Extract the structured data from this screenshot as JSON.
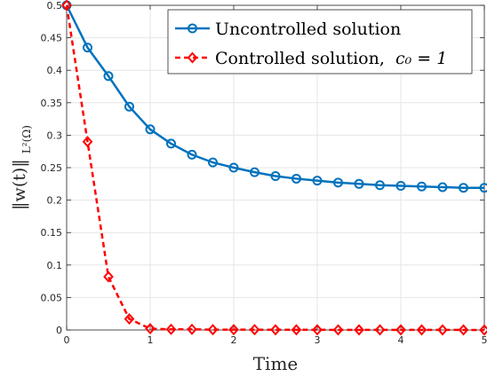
{
  "chart_data": {
    "type": "line",
    "xlabel": "Time",
    "ylabel": "‖w(t)‖",
    "ylabel_sub": "L²(Ω)",
    "xlim": [
      0,
      5
    ],
    "ylim": [
      0,
      0.5
    ],
    "xticks": [
      0,
      1,
      2,
      3,
      4,
      5
    ],
    "yticks": [
      0,
      0.05,
      0.1,
      0.15,
      0.2,
      0.25,
      0.3,
      0.35,
      0.4,
      0.45,
      0.5
    ],
    "grid": true,
    "legend_position": "top-right",
    "series": [
      {
        "name": "Uncontrolled solution",
        "color": "#0072BD",
        "line_style": "solid",
        "marker": "circle",
        "x": [
          0,
          0.25,
          0.5,
          0.75,
          1,
          1.25,
          1.5,
          1.75,
          2,
          2.25,
          2.5,
          2.75,
          3,
          3.25,
          3.5,
          3.75,
          4,
          4.25,
          4.5,
          4.75,
          5
        ],
        "y": [
          0.5,
          0.435,
          0.391,
          0.344,
          0.309,
          0.287,
          0.27,
          0.258,
          0.25,
          0.243,
          0.237,
          0.233,
          0.23,
          0.227,
          0.225,
          0.223,
          0.222,
          0.221,
          0.22,
          0.219,
          0.219
        ]
      },
      {
        "name": "Controlled solution,",
        "name_math": "c₀ = 1",
        "color": "#FF0000",
        "line_style": "dashed",
        "marker": "diamond",
        "x": [
          0,
          0.25,
          0.5,
          0.75,
          1,
          1.25,
          1.5,
          1.75,
          2,
          2.25,
          2.5,
          2.75,
          3,
          3.25,
          3.5,
          3.75,
          4,
          4.25,
          4.5,
          4.75,
          5
        ],
        "y": [
          0.5,
          0.29,
          0.082,
          0.017,
          0.002,
          0.001,
          0.001,
          0.0005,
          0.0005,
          0.0005,
          0.0003,
          0.0003,
          0.0003,
          0.0002,
          0.0002,
          0.0002,
          0.0002,
          0.0001,
          0.0001,
          0.0001,
          0
        ]
      }
    ]
  }
}
